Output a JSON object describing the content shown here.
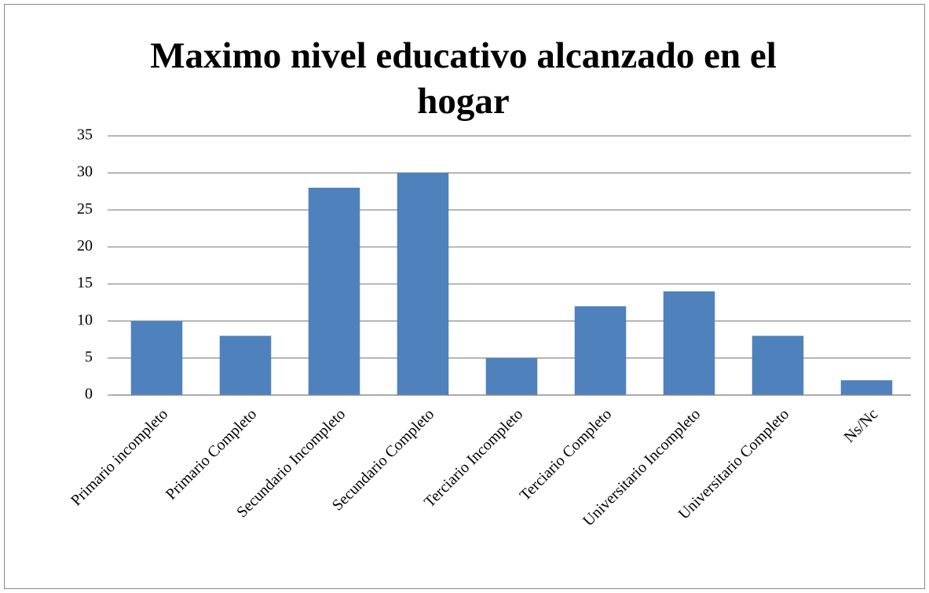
{
  "chart_data": {
    "type": "bar",
    "title": "Maximo nivel educativo alcanzado en el hogar",
    "categories": [
      "Primario incompleto",
      "Primario Completo",
      "Secundario Incompleto",
      "Secundario Completo",
      "Terciario Incompleto",
      "Terciario Completo",
      "Universitario Incompleto",
      "Universitario Completo",
      "Ns/Nc"
    ],
    "values": [
      10,
      8,
      28,
      30,
      5,
      12,
      14,
      8,
      2
    ],
    "color": "#4f81bd",
    "ylim": [
      0,
      35
    ],
    "yticks": [
      0,
      5,
      10,
      15,
      20,
      25,
      30,
      35
    ],
    "grid": true
  }
}
